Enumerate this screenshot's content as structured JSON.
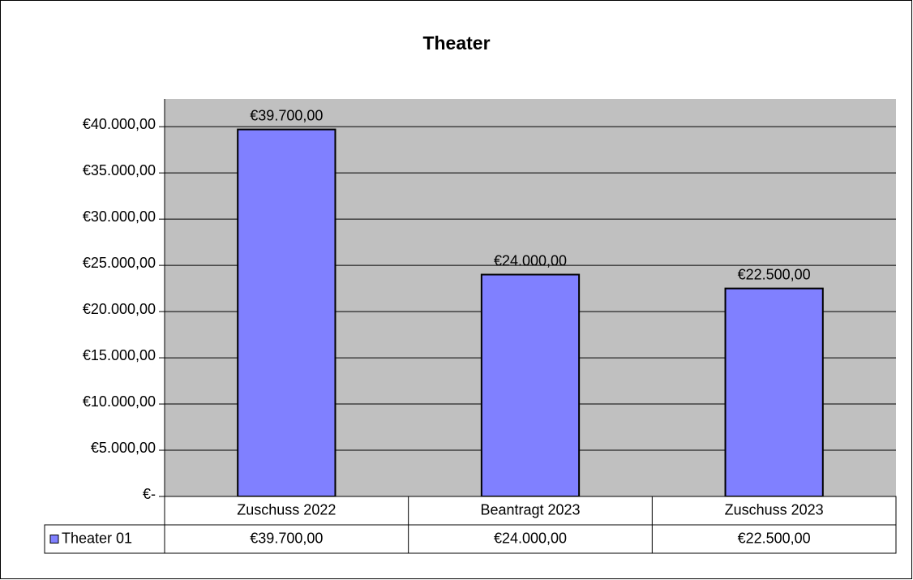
{
  "chart_data": {
    "type": "bar",
    "title": "Theater",
    "categories": [
      "Zuschuss 2022",
      "Beantragt 2023",
      "Zuschuss 2023"
    ],
    "series": [
      {
        "name": "Theater 01",
        "color": "#8080ff",
        "values": [
          39700,
          24000,
          22500
        ],
        "value_labels": [
          "€39.700,00",
          "€24.000,00",
          "€22.500,00"
        ]
      }
    ],
    "ylim": [
      0,
      43000
    ],
    "yticks": [
      {
        "value": 0,
        "label": "€-"
      },
      {
        "value": 5000,
        "label": "€5.000,00"
      },
      {
        "value": 10000,
        "label": "€10.000,00"
      },
      {
        "value": 15000,
        "label": "€15.000,00"
      },
      {
        "value": 20000,
        "label": "€20.000,00"
      },
      {
        "value": 25000,
        "label": "€25.000,00"
      },
      {
        "value": 30000,
        "label": "€30.000,00"
      },
      {
        "value": 35000,
        "label": "€35.000,00"
      },
      {
        "value": 40000,
        "label": "€40.000,00"
      }
    ],
    "grid": true,
    "data_table": true
  }
}
